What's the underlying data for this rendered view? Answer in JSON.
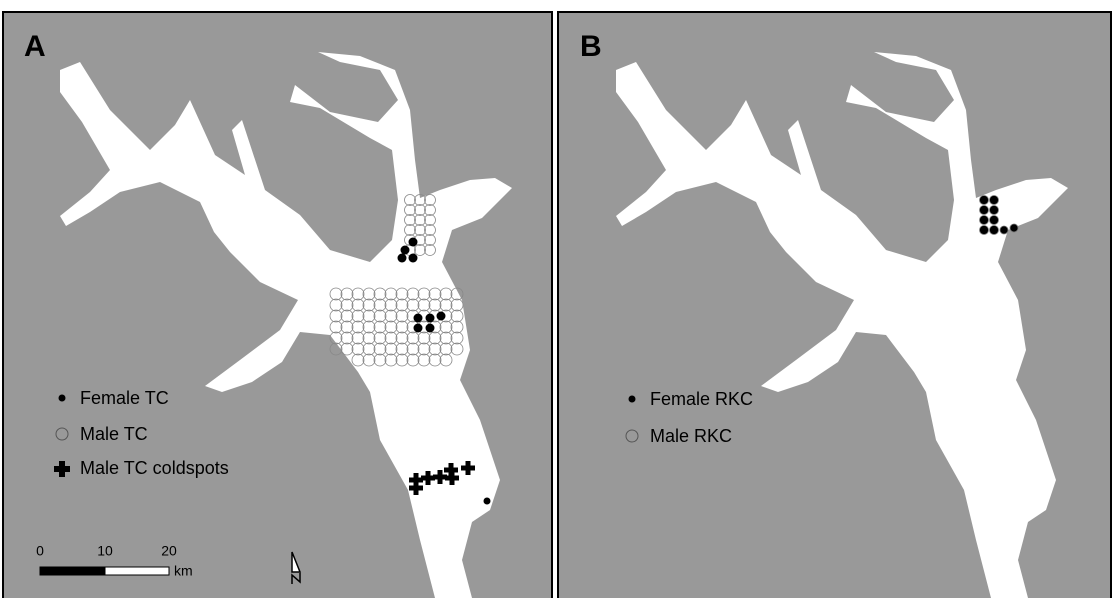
{
  "panels": [
    {
      "label": "A",
      "legend": [
        "Female TC",
        "Male TC",
        "Male TC coldspots"
      ],
      "scale_bar": {
        "ticks": [
          "0",
          "10",
          "20"
        ],
        "unit": "km"
      }
    },
    {
      "label": "B",
      "legend": [
        "Female RKC",
        "Male RKC"
      ]
    }
  ]
}
